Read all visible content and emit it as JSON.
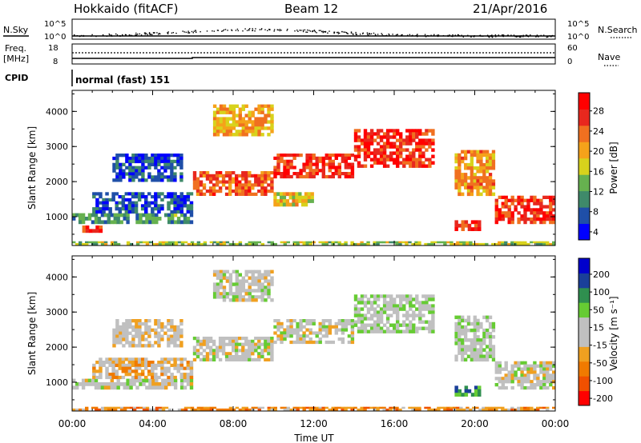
{
  "header": {
    "station": "Hokkaido (fitACF)",
    "beam": "Beam 12",
    "date": "21/Apr/2016"
  },
  "params": {
    "nsky_label": "N.Sky",
    "nsky_ticks": [
      "10^5",
      "10^0"
    ],
    "nsearch_label": "N.Search",
    "nsearch_ticks": [
      "10^5",
      "10^0"
    ],
    "freq_label": "Freq.",
    "freq_unit": "[MHz]",
    "freq_ticks": [
      "18",
      "8"
    ],
    "nave_label": "Nave",
    "nave_ticks": [
      "60",
      "0"
    ],
    "cpid_label": "CPID",
    "cpid_value": "normal (fast) 151"
  },
  "chart_data": [
    {
      "type": "heatmap",
      "name": "power",
      "ylabel": "Slant Range [km]",
      "ylim": [
        180,
        4600
      ],
      "yticks": [
        "1000",
        "2000",
        "3000",
        "4000"
      ],
      "xlim": [
        0,
        24
      ],
      "colorbar": {
        "label": "Power [dB]",
        "ticks": [
          "28",
          "24",
          "20",
          "16",
          "12",
          "8",
          "4"
        ],
        "range": [
          0,
          30
        ],
        "colors": [
          "#0000ff",
          "#1f4fa8",
          "#3f8a6a",
          "#66b14f",
          "#d8d21c",
          "#f5a21a",
          "#f07020",
          "#e8281e",
          "#ff0000"
        ]
      },
      "bands": [
        {
          "t": [
            0,
            6
          ],
          "r": [
            800,
            1100
          ],
          "level": 0.3
        },
        {
          "t": [
            1,
            6
          ],
          "r": [
            1100,
            1700
          ],
          "level": 0.15
        },
        {
          "t": [
            2,
            5.5
          ],
          "r": [
            2000,
            2800
          ],
          "level": 0.15
        },
        {
          "t": [
            0.5,
            1.5
          ],
          "r": [
            550,
            750
          ],
          "level": 0.85
        },
        {
          "t": [
            6,
            10
          ],
          "r": [
            1600,
            2300
          ],
          "level": 0.75
        },
        {
          "t": [
            10,
            14
          ],
          "r": [
            2100,
            2800
          ],
          "level": 0.85
        },
        {
          "t": [
            14,
            18
          ],
          "r": [
            2400,
            3500
          ],
          "level": 0.85
        },
        {
          "t": [
            7,
            10
          ],
          "r": [
            3300,
            4200
          ],
          "level": 0.6
        },
        {
          "t": [
            10,
            12
          ],
          "r": [
            1300,
            1700
          ],
          "level": 0.55
        },
        {
          "t": [
            19,
            21
          ],
          "r": [
            1600,
            2900
          ],
          "level": 0.65
        },
        {
          "t": [
            21,
            24
          ],
          "r": [
            800,
            1600
          ],
          "level": 0.85
        },
        {
          "t": [
            19,
            20.3
          ],
          "r": [
            600,
            900
          ],
          "level": 0.85
        },
        {
          "t": [
            0,
            24
          ],
          "r": [
            200,
            300
          ],
          "level": 0.45
        }
      ]
    },
    {
      "type": "heatmap",
      "name": "velocity",
      "ylabel": "Slant Range [km]",
      "ylim": [
        180,
        4600
      ],
      "yticks": [
        "1000",
        "2000",
        "3000",
        "4000"
      ],
      "xlim": [
        0,
        24
      ],
      "xlabel": "Time UT",
      "xticks": [
        "00:00",
        "04:00",
        "08:00",
        "12:00",
        "16:00",
        "20:00",
        "00:00"
      ],
      "colorbar": {
        "label": "Velocity [m s⁻¹]",
        "ticks": [
          "200",
          "100",
          "50",
          "15",
          "-15",
          "-50",
          "-100",
          "-200"
        ],
        "range": [
          -250,
          250
        ],
        "colors": [
          "#ff0000",
          "#f05000",
          "#f07a00",
          "#f0a020",
          "#c0c0c0",
          "#c0c0c0",
          "#66cc33",
          "#2f8f4f",
          "#1a3f99",
          "#0000cc"
        ]
      },
      "bands": [
        {
          "t": [
            0,
            6
          ],
          "r": [
            800,
            1100
          ],
          "level": 0.5
        },
        {
          "t": [
            1,
            6
          ],
          "r": [
            1100,
            1700
          ],
          "level": 0.4
        },
        {
          "t": [
            2,
            5.5
          ],
          "r": [
            2000,
            2800
          ],
          "level": 0.45
        },
        {
          "t": [
            6,
            10
          ],
          "r": [
            1600,
            2300
          ],
          "level": 0.5
        },
        {
          "t": [
            10,
            14
          ],
          "r": [
            2100,
            2800
          ],
          "level": 0.5
        },
        {
          "t": [
            14,
            18
          ],
          "r": [
            2400,
            3500
          ],
          "level": 0.55
        },
        {
          "t": [
            7,
            10
          ],
          "r": [
            3300,
            4200
          ],
          "level": 0.5
        },
        {
          "t": [
            19,
            21
          ],
          "r": [
            1600,
            2900
          ],
          "level": 0.55
        },
        {
          "t": [
            21,
            24
          ],
          "r": [
            800,
            1600
          ],
          "level": 0.5
        },
        {
          "t": [
            19,
            20.3
          ],
          "r": [
            600,
            900
          ],
          "level": 0.75
        },
        {
          "t": [
            0,
            24
          ],
          "r": [
            200,
            300
          ],
          "level": 0.3
        }
      ]
    }
  ]
}
